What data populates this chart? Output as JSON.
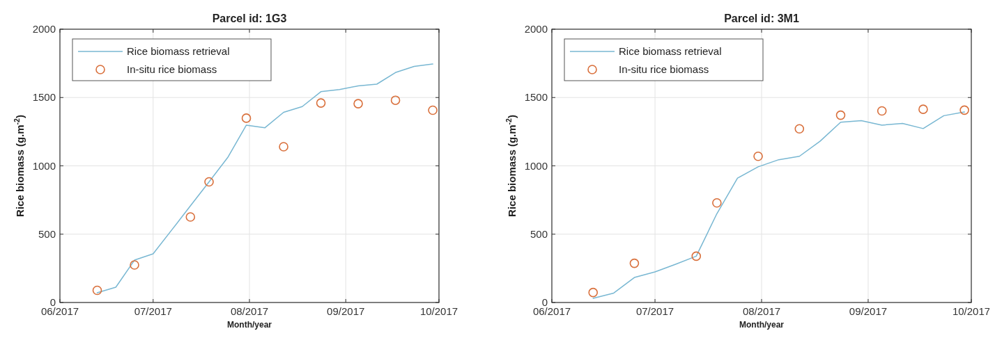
{
  "chart_data": [
    {
      "type": "line",
      "title": "Parcel id: 1G3",
      "xlabel": "Month/year",
      "ylabel": "Rice biomass  (g.m$^{-2}$)",
      "xlim": [
        "2017-06-01",
        "2017-10-01"
      ],
      "xticks": [
        {
          "value": "2017-06-01",
          "label": "06/2017"
        },
        {
          "value": "2017-07-01",
          "label": "07/2017"
        },
        {
          "value": "2017-08-01",
          "label": "08/2017"
        },
        {
          "value": "2017-09-01",
          "label": "09/2017"
        },
        {
          "value": "2017-10-01",
          "label": "10/2017"
        }
      ],
      "ylim": [
        0,
        2000
      ],
      "yticks": [
        0,
        500,
        1000,
        1500,
        2000
      ],
      "grid": true,
      "legend": "top left",
      "series": [
        {
          "name": "Rice biomass retrieval",
          "color": "#78b7d2",
          "marker": "none",
          "line_style": "solid",
          "x": [
            "2017-06-13",
            "2017-06-19",
            "2017-06-25",
            "2017-07-01",
            "2017-07-07",
            "2017-07-13",
            "2017-07-19",
            "2017-07-25",
            "2017-07-31",
            "2017-08-06",
            "2017-08-12",
            "2017-08-18",
            "2017-08-24",
            "2017-08-30",
            "2017-09-05",
            "2017-09-11",
            "2017-09-17",
            "2017-09-23",
            "2017-09-29"
          ],
          "values": [
            71,
            112,
            310,
            356,
            531,
            707,
            883,
            1061,
            1298,
            1279,
            1392,
            1434,
            1543,
            1558,
            1585,
            1598,
            1683,
            1728,
            1745
          ]
        },
        {
          "name": "In-situ rice biomass",
          "type": "scatter",
          "color": "#d9703c",
          "marker": "circle",
          "x": [
            "2017-06-13",
            "2017-06-25",
            "2017-07-13",
            "2017-07-19",
            "2017-07-31",
            "2017-08-12",
            "2017-08-24",
            "2017-09-05",
            "2017-09-17",
            "2017-09-29"
          ],
          "values": [
            89,
            275,
            626,
            883,
            1349,
            1140,
            1460,
            1455,
            1480,
            1407
          ]
        }
      ]
    },
    {
      "type": "line",
      "title": "Parcel id: 3M1",
      "xlabel": "Month/year",
      "ylabel": "Rice biomass  (g.m$^{-2}$)",
      "xlim": [
        "2017-06-01",
        "2017-10-01"
      ],
      "xticks": [
        {
          "value": "2017-06-01",
          "label": "06/2017"
        },
        {
          "value": "2017-07-01",
          "label": "07/2017"
        },
        {
          "value": "2017-08-01",
          "label": "08/2017"
        },
        {
          "value": "2017-09-01",
          "label": "09/2017"
        },
        {
          "value": "2017-10-01",
          "label": "10/2017"
        }
      ],
      "ylim": [
        0,
        2000
      ],
      "yticks": [
        0,
        500,
        1000,
        1500,
        2000
      ],
      "grid": true,
      "legend": "top left",
      "series": [
        {
          "name": "Rice biomass retrieval",
          "color": "#78b7d2",
          "marker": "none",
          "line_style": "solid",
          "x": [
            "2017-06-13",
            "2017-06-19",
            "2017-06-25",
            "2017-07-01",
            "2017-07-07",
            "2017-07-13",
            "2017-07-19",
            "2017-07-25",
            "2017-07-31",
            "2017-08-06",
            "2017-08-12",
            "2017-08-18",
            "2017-08-24",
            "2017-08-30",
            "2017-09-05",
            "2017-09-11",
            "2017-09-17",
            "2017-09-23",
            "2017-09-29"
          ],
          "values": [
            31,
            69,
            183,
            224,
            280,
            339,
            650,
            910,
            993,
            1045,
            1070,
            1180,
            1319,
            1331,
            1298,
            1310,
            1273,
            1367,
            1394
          ]
        },
        {
          "name": "In-situ rice biomass",
          "type": "scatter",
          "color": "#d9703c",
          "marker": "circle",
          "x": [
            "2017-06-13",
            "2017-06-25",
            "2017-07-13",
            "2017-07-19",
            "2017-07-31",
            "2017-08-12",
            "2017-08-24",
            "2017-09-05",
            "2017-09-17",
            "2017-09-29"
          ],
          "values": [
            73,
            287,
            339,
            729,
            1070,
            1271,
            1371,
            1402,
            1414,
            1408
          ]
        }
      ]
    }
  ]
}
